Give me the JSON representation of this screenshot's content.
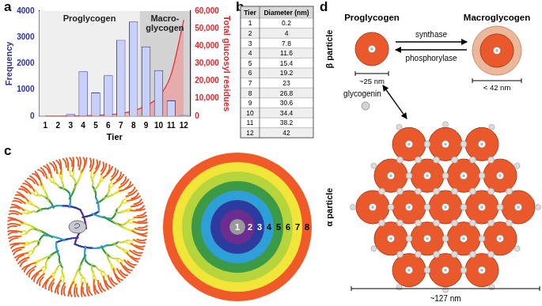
{
  "panel_labels": [
    "a",
    "b",
    "c",
    "d"
  ],
  "chart_data": {
    "type": "bar",
    "x_label": "Tier",
    "y_label": "Frequency",
    "y2_label": "Total glucosyl residues",
    "x": [
      1,
      2,
      3,
      4,
      5,
      6,
      7,
      8,
      9,
      10,
      11,
      12
    ],
    "xlim": [
      0.5,
      12.5
    ],
    "xticks": [
      1,
      2,
      3,
      4,
      5,
      6,
      7,
      8,
      9,
      10,
      11,
      12
    ],
    "ylim": [
      0,
      4000
    ],
    "yticks": [
      0,
      1000,
      2000,
      3000,
      4000
    ],
    "y2lim": [
      0,
      60000
    ],
    "y2ticks": [
      0,
      {
        "value": 10000,
        "label": "10,000"
      },
      {
        "value": 20000,
        "label": "20,000"
      },
      {
        "value": 30000,
        "label": "30,000"
      },
      {
        "value": 40000,
        "label": "40,000"
      },
      {
        "value": 50000,
        "label": "50,000"
      },
      {
        "value": 60000,
        "label": "60,000"
      }
    ],
    "series": [
      {
        "name": "Frequency",
        "type": "bar",
        "color": "#c9d0f7",
        "values": [
          0,
          0,
          80,
          1700,
          900,
          1550,
          2900,
          3600,
          2650,
          1750,
          600,
          40
        ]
      },
      {
        "name": "Total glucosyl residues",
        "type": "line",
        "axis": "y2",
        "color": "#e8262a",
        "values": [
          0,
          0,
          100,
          200,
          400,
          800,
          1500,
          3000,
          6000,
          11000,
          24000,
          55000
        ]
      }
    ],
    "regions": [
      {
        "label": [
          "Proglycogen"
        ],
        "from": 0.5,
        "to": 8.5
      },
      {
        "label": [
          "Macro-",
          "glycogen"
        ],
        "from": 8.5,
        "to": 12.5
      }
    ],
    "grid": false
  },
  "table": {
    "header": [
      "Tier",
      "Diameter (nm)"
    ],
    "rows": [
      [
        "1",
        "0.2"
      ],
      [
        "2",
        "4"
      ],
      [
        "3",
        "7.8"
      ],
      [
        "4",
        "11.6"
      ],
      [
        "5",
        "15.4"
      ],
      [
        "6",
        "19.2"
      ],
      [
        "7",
        "23"
      ],
      [
        "8",
        "26.8"
      ],
      [
        "9",
        "30.6"
      ],
      [
        "10",
        "34.4"
      ],
      [
        "11",
        "38.2"
      ],
      [
        "12",
        "42"
      ]
    ]
  },
  "tiers_diagram": {
    "labels": [
      "1",
      "2",
      "3",
      "4",
      "5",
      "6",
      "7",
      "8"
    ]
  },
  "particles_diagram": {
    "proglycogen": "Proglycogen",
    "macroglycogen": "Macroglycogen",
    "forward": "synthase",
    "reverse": "phosphorylase",
    "proglycogen_size": "~25 nm",
    "macroglycogen_size": "< 42 nm",
    "beta_label": "β particle",
    "glycogenin": "glycogenin",
    "alpha_label": "α particle",
    "alpha_size": "~127 nm"
  }
}
